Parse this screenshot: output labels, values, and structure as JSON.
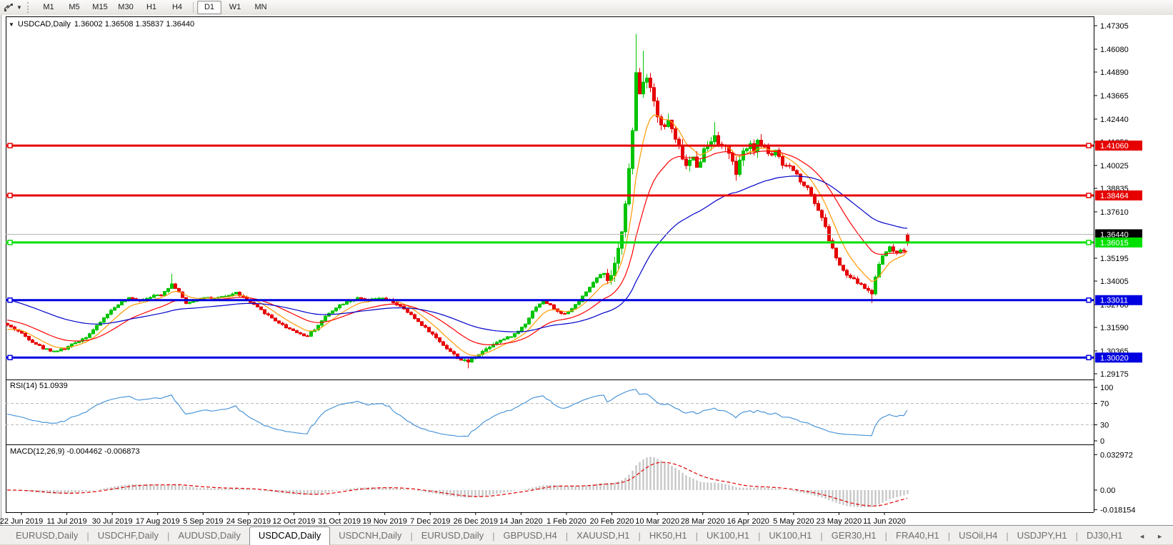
{
  "toolbar": {
    "timeframes": [
      "M1",
      "M5",
      "M15",
      "M30",
      "H1",
      "H4",
      "D1",
      "W1",
      "MN"
    ],
    "active_timeframe": "D1"
  },
  "chart": {
    "title_symbol": "USDCAD,Daily",
    "title_ohlc": "1.36002 1.36508 1.35837 1.36440"
  },
  "indicators": {
    "rsi": {
      "label": "RSI(14) 51.0939",
      "value": 51.0939,
      "levels": [
        70,
        30
      ],
      "line_color": "#3e8ed6"
    },
    "macd": {
      "label": "MACD(12,26,9) -0.004462 -0.006873",
      "main": -0.004462,
      "signal": -0.006873,
      "bar_color": "#c8c8c8",
      "bar_stroke": "#9a9a9a",
      "signal_color": "#e00000"
    }
  },
  "axis": {
    "price_ticks": [
      "1.47305",
      "1.46080",
      "1.44890",
      "1.43665",
      "1.42440",
      "1.41250",
      "1.40025",
      "1.38835",
      "1.37610",
      "1.35195",
      "1.34005",
      "1.32780",
      "1.31590",
      "1.30365",
      "1.29175"
    ],
    "rsi_ticks": [
      [
        "100",
        100
      ],
      [
        "70",
        70
      ],
      [
        "30",
        30
      ],
      [
        "0",
        0
      ]
    ],
    "macd_ticks": [
      [
        "0.032972",
        0.032972
      ],
      [
        "0.00",
        0
      ],
      [
        "-0.018154",
        -0.018154
      ]
    ],
    "dates": [
      "22 Jun 2019",
      "11 Jul 2019",
      "30 Jul 2019",
      "17 Aug 2019",
      "5 Sep 2019",
      "24 Sep 2019",
      "12 Oct 2019",
      "31 Oct 2019",
      "19 Nov 2019",
      "7 Dec 2019",
      "26 Dec 2019",
      "14 Jan 2020",
      "1 Feb 2020",
      "20 Feb 2020",
      "10 Mar 2020",
      "28 Mar 2020",
      "16 Apr 2020",
      "5 May 2020",
      "23 May 2020",
      "11 Jun 2020"
    ]
  },
  "hlines": [
    {
      "price": 1.4106,
      "label": "1.41060",
      "color": "#e60000",
      "text_color": "#ffffff"
    },
    {
      "price": 1.38464,
      "label": "1.38464",
      "color": "#e60000",
      "text_color": "#ffffff"
    },
    {
      "price": 1.36015,
      "label": "1.36015",
      "color": "#00e000",
      "text_color": "#ffffff"
    },
    {
      "price": 1.33011,
      "label": "1.33011",
      "color": "#0000e0",
      "text_color": "#ffffff"
    },
    {
      "price": 1.3002,
      "label": "1.30020",
      "color": "#0000e0",
      "text_color": "#ffffff"
    }
  ],
  "current_price": {
    "value": 1.3644,
    "label": "1.36440",
    "line_color": "#b4b4b4",
    "box_color": "#000000",
    "text_color": "#ffffff"
  },
  "tabs": {
    "items": [
      "EURUSD,Daily",
      "USDCHF,Daily",
      "AUDUSD,Daily",
      "USDCAD,Daily",
      "USDCNH,Daily",
      "EURUSD,Daily",
      "GBPUSD,H4",
      "XAUUSD,H1",
      "HK50,H1",
      "UK100,H1",
      "UK100,H1",
      "GER30,H1",
      "FRA40,H1",
      "USOil,H4",
      "USDJPY,H1",
      "DJ30,H1"
    ],
    "active_index": 3
  },
  "chart_data": {
    "type": "candlestick",
    "symbol": "USDCAD",
    "timeframe": "Daily",
    "title": "USDCAD,Daily",
    "current_ohlc": {
      "open": 1.36002,
      "high": 1.36508,
      "low": 1.35837,
      "close": 1.3644
    },
    "y_range": [
      1.29175,
      1.47305
    ],
    "bull_color": "#00c400",
    "bear_color": "#e60000",
    "ma": [
      {
        "name": "fast",
        "period": 8,
        "color": "#ff9900",
        "seed": 1.314
      },
      {
        "name": "medium",
        "period": 21,
        "color": "#ff0000",
        "seed": 1.32
      },
      {
        "name": "slow",
        "period": 55,
        "color": "#0000cc",
        "seed": 1.331
      }
    ],
    "price_path": [
      [
        10,
        1.317
      ],
      [
        25,
        1.314
      ],
      [
        45,
        1.3085
      ],
      [
        60,
        1.305
      ],
      [
        75,
        1.3035
      ],
      [
        90,
        1.3048
      ],
      [
        105,
        1.308
      ],
      [
        120,
        1.311
      ],
      [
        135,
        1.3165
      ],
      [
        150,
        1.323
      ],
      [
        165,
        1.328
      ],
      [
        180,
        1.331
      ],
      [
        195,
        1.33
      ],
      [
        210,
        1.332
      ],
      [
        225,
        1.333
      ],
      [
        240,
        1.3385
      ],
      [
        250,
        1.3345
      ],
      [
        260,
        1.328
      ],
      [
        272,
        1.33
      ],
      [
        285,
        1.3318
      ],
      [
        300,
        1.3308
      ],
      [
        315,
        1.332
      ],
      [
        330,
        1.334
      ],
      [
        342,
        1.331
      ],
      [
        355,
        1.3275
      ],
      [
        370,
        1.3235
      ],
      [
        385,
        1.3195
      ],
      [
        400,
        1.316
      ],
      [
        415,
        1.3135
      ],
      [
        428,
        1.311
      ],
      [
        440,
        1.315
      ],
      [
        455,
        1.3215
      ],
      [
        470,
        1.3265
      ],
      [
        485,
        1.3295
      ],
      [
        500,
        1.331
      ],
      [
        515,
        1.3298
      ],
      [
        530,
        1.3312
      ],
      [
        545,
        1.33
      ],
      [
        558,
        1.3272
      ],
      [
        572,
        1.3232
      ],
      [
        586,
        1.3186
      ],
      [
        600,
        1.314
      ],
      [
        614,
        1.309
      ],
      [
        628,
        1.304
      ],
      [
        642,
        1.2995
      ],
      [
        654,
        1.2978
      ],
      [
        666,
        1.3012
      ],
      [
        680,
        1.3048
      ],
      [
        694,
        1.3085
      ],
      [
        708,
        1.3102
      ],
      [
        722,
        1.3128
      ],
      [
        736,
        1.3185
      ],
      [
        748,
        1.3262
      ],
      [
        760,
        1.3298
      ],
      [
        772,
        1.3268
      ],
      [
        784,
        1.3228
      ],
      [
        796,
        1.3242
      ],
      [
        808,
        1.3288
      ],
      [
        820,
        1.334
      ],
      [
        832,
        1.3405
      ],
      [
        842,
        1.3438
      ],
      [
        852,
        1.3395
      ],
      [
        860,
        1.3475
      ],
      [
        868,
        1.361
      ],
      [
        876,
        1.385
      ],
      [
        884,
        1.411
      ],
      [
        890,
        1.448
      ],
      [
        896,
        1.436
      ],
      [
        902,
        1.4495
      ],
      [
        908,
        1.443
      ],
      [
        914,
        1.4375
      ],
      [
        920,
        1.4265
      ],
      [
        928,
        1.4185
      ],
      [
        936,
        1.4245
      ],
      [
        944,
        1.4135
      ],
      [
        952,
        1.408
      ],
      [
        960,
        1.3995
      ],
      [
        968,
        1.4048
      ],
      [
        976,
        1.4002
      ],
      [
        984,
        1.4075
      ],
      [
        992,
        1.4115
      ],
      [
        1000,
        1.4175
      ],
      [
        1006,
        1.4085
      ],
      [
        1014,
        1.4125
      ],
      [
        1022,
        1.4035
      ],
      [
        1030,
        1.3962
      ],
      [
        1038,
        1.4048
      ],
      [
        1046,
        1.4108
      ],
      [
        1054,
        1.4088
      ],
      [
        1062,
        1.4125
      ],
      [
        1070,
        1.4098
      ],
      [
        1078,
        1.4052
      ],
      [
        1086,
        1.4088
      ],
      [
        1094,
        1.3992
      ],
      [
        1102,
        1.4008
      ],
      [
        1110,
        1.3978
      ],
      [
        1118,
        1.3938
      ],
      [
        1126,
        1.3898
      ],
      [
        1134,
        1.3868
      ],
      [
        1142,
        1.3788
      ],
      [
        1150,
        1.3738
      ],
      [
        1158,
        1.3638
      ],
      [
        1166,
        1.3558
      ],
      [
        1174,
        1.3488
      ],
      [
        1182,
        1.3438
      ],
      [
        1190,
        1.3418
      ],
      [
        1198,
        1.3398
      ],
      [
        1206,
        1.3378
      ],
      [
        1214,
        1.3352
      ],
      [
        1220,
        1.3338
      ],
      [
        1226,
        1.3438
      ],
      [
        1232,
        1.3515
      ],
      [
        1238,
        1.3552
      ],
      [
        1244,
        1.3578
      ],
      [
        1250,
        1.3558
      ],
      [
        1256,
        1.3545
      ],
      [
        1262,
        1.3575
      ],
      [
        1267,
        1.3555
      ],
      [
        1272,
        1.3644
      ]
    ],
    "spikes": [
      {
        "x": 890,
        "high": 1.4688
      },
      {
        "x": 902,
        "high": 1.46
      },
      {
        "x": 1000,
        "high": 1.4228
      },
      {
        "x": 654,
        "low": 1.2946
      },
      {
        "x": 1218,
        "low": 1.3286
      },
      {
        "x": 240,
        "high": 1.3438
      }
    ]
  }
}
